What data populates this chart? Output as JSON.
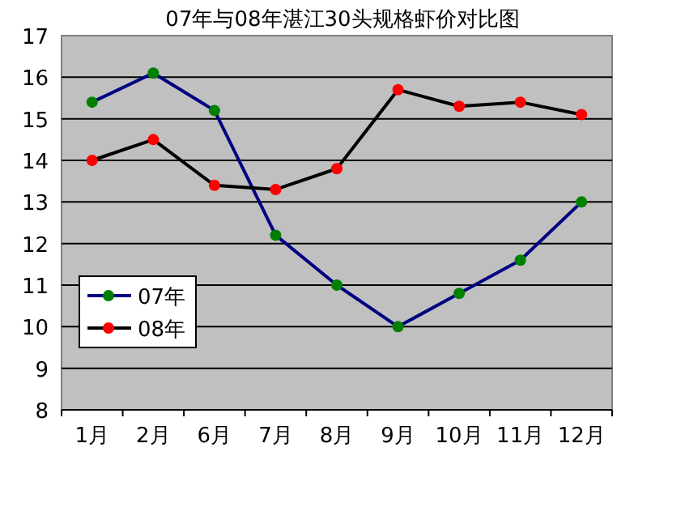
{
  "chart_data": {
    "type": "line",
    "title": "07年与08年湛江30头规格虾价对比图",
    "categories": [
      "1月",
      "2月",
      "6月",
      "7月",
      "8月",
      "9月",
      "10月",
      "11月",
      "12月"
    ],
    "series": [
      {
        "name": "07年",
        "color": "#000080",
        "colors": [
          "#008000",
          "#008000",
          "#008000",
          "#008000",
          "#008000",
          "#008000",
          "#008000",
          "#008000",
          "#008000"
        ],
        "values": [
          15.4,
          16.1,
          15.2,
          12.2,
          11.0,
          10.0,
          10.8,
          11.6,
          13.0
        ]
      },
      {
        "name": "08年",
        "color": "#000000",
        "colors": [
          "#ff0000",
          "#ff0000",
          "#ff0000",
          "#ff0000",
          "#ff0000",
          "#ff0000",
          "#ff0000",
          "#ff0000",
          "#ff0000"
        ],
        "values": [
          14.0,
          14.5,
          13.4,
          13.3,
          13.8,
          15.7,
          15.3,
          15.4,
          15.1
        ]
      }
    ],
    "ylim": [
      8,
      17
    ],
    "yticks": [
      8,
      9,
      10,
      11,
      12,
      13,
      14,
      15,
      16,
      17
    ],
    "grid": "y",
    "legend": "bottom left",
    "marker": "circle",
    "line_style": "solid"
  }
}
